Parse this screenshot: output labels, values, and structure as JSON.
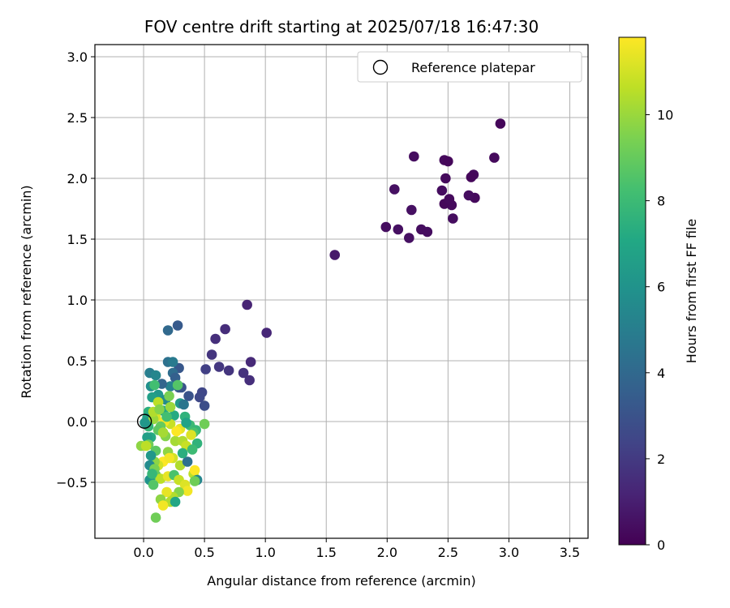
{
  "chart_data": {
    "type": "scatter",
    "title": "FOV centre drift starting at 2025/07/18 16:47:30",
    "xlabel": "Angular distance from reference (arcmin)",
    "ylabel": "Rotation from reference (arcmin)",
    "xlim": [
      -0.4,
      3.65
    ],
    "ylim": [
      -0.96,
      3.1
    ],
    "x_ticks": [
      0.0,
      0.5,
      1.0,
      1.5,
      2.0,
      2.5,
      3.0,
      3.5
    ],
    "x_tick_labels": [
      "0.0",
      "0.5",
      "1.0",
      "1.5",
      "2.0",
      "2.5",
      "3.0",
      "3.5"
    ],
    "y_ticks": [
      -0.5,
      0.0,
      0.5,
      1.0,
      1.5,
      2.0,
      2.5,
      3.0
    ],
    "y_tick_labels": [
      "−0.5",
      "0.0",
      "0.5",
      "1.0",
      "1.5",
      "2.0",
      "2.5",
      "3.0"
    ],
    "grid": true,
    "legend": {
      "placement": "top-right",
      "entries": [
        "Reference platepar"
      ]
    },
    "reference_point": {
      "name": "Reference platepar",
      "x": 0.0,
      "y": 0.0
    },
    "colorbar": {
      "label": "Hours from first FF file",
      "colormap": "viridis",
      "range": [
        0,
        11.8
      ],
      "ticks": [
        0,
        2,
        4,
        6,
        8,
        10
      ],
      "tick_labels": [
        "0",
        "2",
        "4",
        "6",
        "8",
        "10"
      ]
    },
    "points": [
      [
        2.93,
        2.45,
        0.2
      ],
      [
        2.88,
        2.17,
        0.3
      ],
      [
        2.71,
        2.03,
        0.3
      ],
      [
        2.69,
        2.01,
        0.2
      ],
      [
        2.72,
        1.84,
        0.3
      ],
      [
        2.67,
        1.86,
        0.4
      ],
      [
        2.54,
        1.67,
        0.4
      ],
      [
        2.53,
        1.78,
        0.3
      ],
      [
        2.47,
        1.79,
        0.2
      ],
      [
        2.51,
        1.83,
        0.3
      ],
      [
        2.45,
        1.9,
        0.4
      ],
      [
        2.47,
        2.15,
        0.3
      ],
      [
        2.5,
        2.14,
        0.2
      ],
      [
        2.48,
        2.0,
        0.3
      ],
      [
        2.22,
        2.18,
        0.4
      ],
      [
        2.06,
        1.91,
        0.5
      ],
      [
        2.2,
        1.74,
        0.5
      ],
      [
        1.99,
        1.6,
        0.4
      ],
      [
        2.09,
        1.58,
        0.5
      ],
      [
        2.18,
        1.51,
        0.5
      ],
      [
        2.28,
        1.58,
        0.4
      ],
      [
        2.33,
        1.56,
        0.4
      ],
      [
        1.57,
        1.37,
        0.8
      ],
      [
        0.85,
        0.96,
        1.2
      ],
      [
        1.01,
        0.73,
        1.3
      ],
      [
        0.67,
        0.76,
        1.5
      ],
      [
        0.59,
        0.68,
        1.6
      ],
      [
        0.56,
        0.55,
        1.8
      ],
      [
        0.88,
        0.49,
        1.4
      ],
      [
        0.62,
        0.45,
        1.9
      ],
      [
        0.7,
        0.42,
        1.8
      ],
      [
        0.82,
        0.4,
        1.7
      ],
      [
        0.87,
        0.34,
        1.6
      ],
      [
        0.51,
        0.43,
        2.2
      ],
      [
        0.48,
        0.24,
        2.5
      ],
      [
        0.5,
        0.13,
        2.8
      ],
      [
        0.46,
        0.2,
        2.6
      ],
      [
        0.37,
        0.21,
        3.0
      ],
      [
        0.28,
        0.79,
        3.3
      ],
      [
        0.2,
        0.75,
        4.0
      ],
      [
        0.29,
        0.44,
        3.2
      ],
      [
        0.2,
        0.49,
        4.4
      ],
      [
        0.24,
        0.49,
        4.8
      ],
      [
        0.24,
        0.4,
        4.2
      ],
      [
        0.26,
        0.36,
        3.6
      ],
      [
        0.29,
        0.28,
        3.4
      ],
      [
        0.31,
        0.28,
        3.0
      ],
      [
        0.22,
        0.29,
        5.2
      ],
      [
        0.15,
        0.31,
        3.8
      ],
      [
        0.05,
        0.4,
        5.0
      ],
      [
        0.1,
        0.38,
        5.4
      ],
      [
        0.06,
        0.29,
        5.8
      ],
      [
        0.12,
        0.22,
        6.2
      ],
      [
        0.07,
        0.2,
        6.6
      ],
      [
        0.18,
        0.18,
        5.6
      ],
      [
        0.3,
        0.15,
        6.4
      ],
      [
        0.33,
        0.14,
        4.6
      ],
      [
        0.16,
        0.09,
        7.0
      ],
      [
        0.04,
        0.08,
        7.4
      ],
      [
        0.03,
        0.03,
        6.8
      ],
      [
        0.09,
        0.3,
        8.2
      ],
      [
        0.28,
        0.3,
        8.6
      ],
      [
        0.21,
        0.21,
        9.4
      ],
      [
        0.12,
        0.16,
        10.6
      ],
      [
        0.1,
        0.04,
        11.2
      ],
      [
        0.08,
        0.02,
        10.0
      ],
      [
        0.04,
        -0.04,
        7.8
      ],
      [
        0.01,
        -0.01,
        6.2
      ],
      [
        0.25,
        0.05,
        7.2
      ],
      [
        0.34,
        0.04,
        7.6
      ],
      [
        0.38,
        -0.03,
        8.0
      ],
      [
        0.3,
        -0.06,
        11.4
      ],
      [
        0.43,
        -0.07,
        7.8
      ],
      [
        0.41,
        -0.09,
        8.4
      ],
      [
        0.22,
        -0.02,
        10.8
      ],
      [
        0.17,
        0.0,
        11.6
      ],
      [
        0.14,
        -0.04,
        9.0
      ],
      [
        0.12,
        -0.07,
        8.8
      ],
      [
        0.18,
        -0.12,
        9.6
      ],
      [
        0.26,
        -0.16,
        10.2
      ],
      [
        0.06,
        -0.13,
        7.2
      ],
      [
        0.03,
        -0.13,
        6.6
      ],
      [
        0.04,
        -0.19,
        9.2
      ],
      [
        -0.02,
        -0.2,
        9.8
      ],
      [
        0.1,
        -0.24,
        8.8
      ],
      [
        0.2,
        -0.25,
        9.8
      ],
      [
        0.32,
        -0.16,
        10.4
      ],
      [
        0.35,
        -0.2,
        10.8
      ],
      [
        0.44,
        -0.18,
        7.6
      ],
      [
        0.5,
        -0.02,
        9.2
      ],
      [
        0.39,
        -0.11,
        11.2
      ],
      [
        0.24,
        -0.3,
        11.0
      ],
      [
        0.3,
        -0.36,
        10.4
      ],
      [
        0.36,
        -0.33,
        4.4
      ],
      [
        0.16,
        -0.33,
        11.8
      ],
      [
        0.21,
        -0.3,
        11.6
      ],
      [
        0.12,
        -0.36,
        11.0
      ],
      [
        0.09,
        -0.33,
        9.8
      ],
      [
        0.06,
        -0.28,
        6.2
      ],
      [
        0.05,
        -0.36,
        5.6
      ],
      [
        0.09,
        -0.39,
        9.4
      ],
      [
        0.1,
        -0.44,
        9.0
      ],
      [
        0.14,
        -0.47,
        10.6
      ],
      [
        0.2,
        -0.45,
        11.4
      ],
      [
        0.25,
        -0.44,
        8.4
      ],
      [
        0.29,
        -0.48,
        10.8
      ],
      [
        0.34,
        -0.52,
        11.2
      ],
      [
        0.36,
        -0.57,
        11.6
      ],
      [
        0.41,
        -0.43,
        10.6
      ],
      [
        0.42,
        -0.4,
        11.8
      ],
      [
        0.44,
        -0.48,
        5.4
      ],
      [
        0.42,
        -0.49,
        9.2
      ],
      [
        0.29,
        -0.58,
        9.6
      ],
      [
        0.24,
        -0.62,
        10.4
      ],
      [
        0.19,
        -0.58,
        11.4
      ],
      [
        0.14,
        -0.64,
        9.8
      ],
      [
        0.22,
        -0.66,
        10.4
      ],
      [
        0.26,
        -0.66,
        7.0
      ],
      [
        0.16,
        -0.69,
        11.6
      ],
      [
        0.1,
        -0.79,
        9.2
      ],
      [
        0.05,
        -0.48,
        6.0
      ],
      [
        0.07,
        -0.43,
        7.8
      ],
      [
        0.08,
        -0.52,
        8.6
      ],
      [
        0.02,
        -0.2,
        10.6
      ],
      [
        0.16,
        -0.09,
        10.2
      ],
      [
        0.19,
        0.04,
        8.2
      ],
      [
        0.08,
        0.08,
        10.4
      ],
      [
        0.32,
        -0.26,
        7.4
      ],
      [
        0.4,
        -0.23,
        8.0
      ],
      [
        0.27,
        -0.08,
        11.8
      ],
      [
        0.35,
        -0.01,
        6.8
      ],
      [
        0.13,
        0.1,
        9.6
      ],
      [
        0.22,
        0.12,
        10.0
      ]
    ]
  }
}
